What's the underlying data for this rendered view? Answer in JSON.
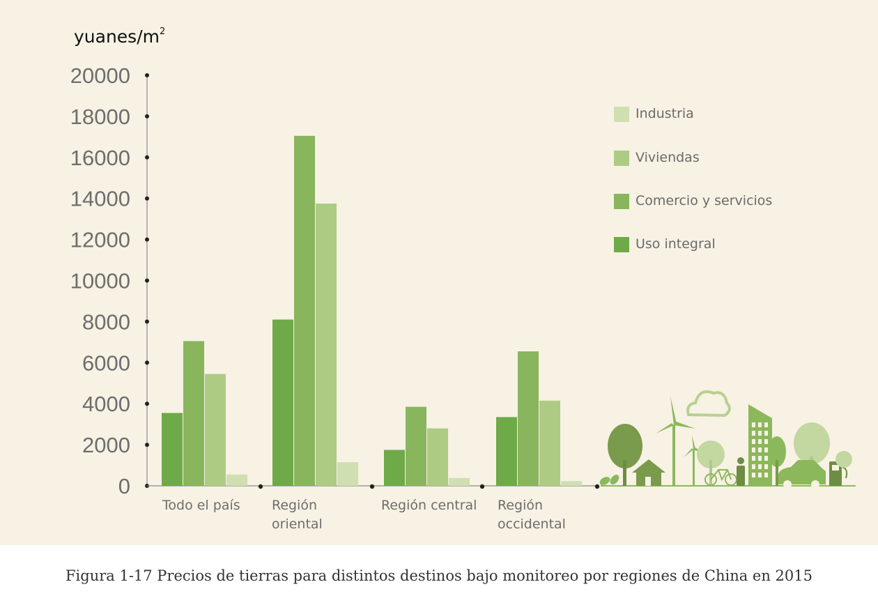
{
  "chart_data": {
    "type": "bar",
    "ylabel_text": "yuanes/m",
    "ylabel_sup": "2",
    "ylim": [
      0,
      20000
    ],
    "yticks": [
      "20000",
      "18000",
      "16000",
      "14000",
      "12000",
      "10000",
      "8000",
      "6000",
      "4000",
      "2000",
      "0"
    ],
    "categories": [
      [
        "Todo el país"
      ],
      [
        "Región",
        "oriental"
      ],
      [
        "Región central"
      ],
      [
        "Región",
        "occidental"
      ]
    ],
    "series": [
      {
        "name": "Uso integral",
        "color": "#6eaa48",
        "values": [
          3550,
          8100,
          1750,
          3350
        ]
      },
      {
        "name": "Comercio y servicios",
        "color": "#89b55d",
        "values": [
          7050,
          17050,
          3850,
          6550
        ]
      },
      {
        "name": "Viviendas",
        "color": "#aecb84",
        "values": [
          5450,
          13750,
          2800,
          4150
        ]
      },
      {
        "name": "Industria",
        "color": "#cfdfb1",
        "values": [
          550,
          1150,
          380,
          230
        ]
      }
    ],
    "legend_order": [
      "Industria",
      "Viviendas",
      "Comercio y servicios",
      "Uso integral"
    ],
    "legend_position": "top-right",
    "grid": false
  },
  "caption": "Figura 1-17  Precios de tierras para distintos destinos bajo monitoreo por regiones de China en 2015",
  "illustration": "green-city-illustration"
}
